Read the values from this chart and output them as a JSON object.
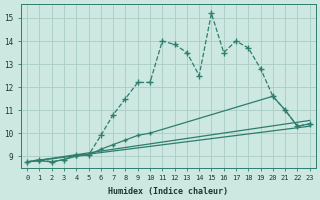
{
  "xlabel": "Humidex (Indice chaleur)",
  "ylabel": "",
  "bg_color": "#cce8e0",
  "line_color": "#2e7d6e",
  "grid_color": "#aaccC4",
  "xlim": [
    -0.5,
    23.5
  ],
  "ylim": [
    8.5,
    15.6
  ],
  "xticks": [
    0,
    1,
    2,
    3,
    4,
    5,
    6,
    7,
    8,
    9,
    10,
    11,
    12,
    13,
    14,
    15,
    16,
    17,
    18,
    19,
    20,
    21,
    22,
    23
  ],
  "yticks": [
    9,
    10,
    11,
    12,
    13,
    14,
    15
  ],
  "series": [
    {
      "x": [
        0,
        1,
        2,
        3,
        4,
        5,
        6,
        7,
        8,
        9,
        10,
        11,
        12,
        13,
        14,
        15,
        16,
        17,
        18,
        19,
        20,
        21,
        22,
        23
      ],
      "y": [
        8.75,
        8.85,
        8.75,
        8.85,
        9.05,
        9.05,
        9.9,
        10.8,
        11.5,
        12.2,
        12.2,
        14.0,
        13.85,
        13.5,
        12.5,
        15.2,
        13.5,
        14.0,
        13.7,
        12.8,
        11.6,
        11.0,
        10.3,
        10.4
      ],
      "marker": "+",
      "linestyle": "--",
      "linewidth": 0.9,
      "markersize": 4
    },
    {
      "x": [
        0,
        1,
        2,
        3,
        4,
        5,
        6,
        7,
        8,
        9,
        10,
        20,
        21,
        22,
        23
      ],
      "y": [
        8.75,
        8.8,
        8.75,
        8.85,
        9.0,
        9.05,
        9.3,
        9.5,
        9.7,
        9.9,
        10.0,
        11.6,
        11.0,
        10.3,
        10.4
      ],
      "marker": "+",
      "linestyle": "-",
      "linewidth": 0.9,
      "markersize": 3.5
    },
    {
      "x": [
        0,
        23
      ],
      "y": [
        8.75,
        10.3
      ],
      "marker": null,
      "linestyle": "-",
      "linewidth": 0.9,
      "markersize": 0
    },
    {
      "x": [
        0,
        23
      ],
      "y": [
        8.75,
        10.55
      ],
      "marker": null,
      "linestyle": "-",
      "linewidth": 0.9,
      "markersize": 0
    }
  ]
}
